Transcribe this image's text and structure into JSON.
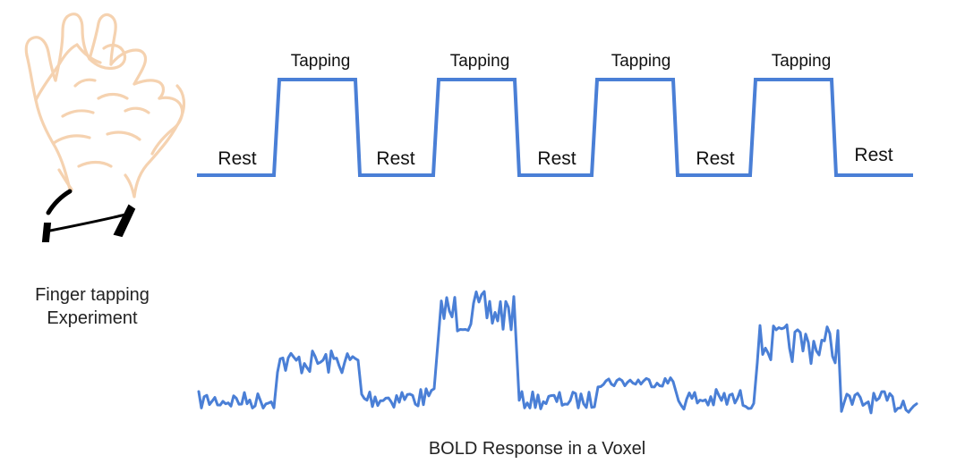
{
  "figure": {
    "hand_caption_line1": "Finger tapping",
    "hand_caption_line2": "Experiment",
    "response_caption": "BOLD Response in a Voxel"
  },
  "stimulus": {
    "states": [
      "Rest",
      "Tapping",
      "Rest",
      "Tapping",
      "Rest",
      "Tapping",
      "Rest",
      "Tapping",
      "Rest"
    ],
    "tapping_label": "Tapping",
    "rest_label": "Rest"
  },
  "colors": {
    "signal": "#4a7fd6",
    "hand_outline": "#f5d2b0",
    "cuff": "#000000",
    "text": "#111111"
  },
  "icons": {
    "hand": "hand-ok-gesture-icon"
  }
}
